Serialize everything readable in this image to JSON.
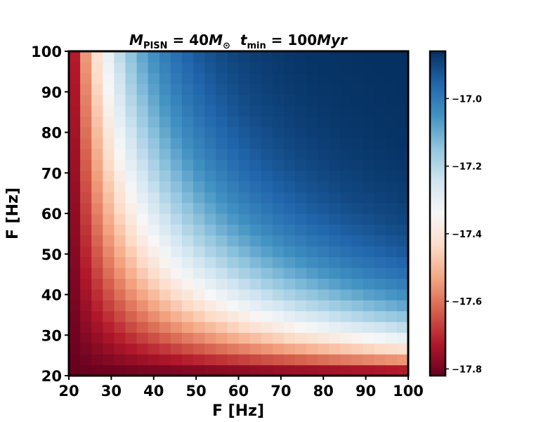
{
  "chart_data": {
    "type": "heatmap",
    "title": "$M_{\\rm PISN}=40M_\\odot$  $t_{\\rm min}=100Myr$",
    "title_parts": {
      "m": "M",
      "m_sub": "PISN",
      "eq1": " = 40",
      "m2": "M",
      "sun": "⊙",
      "t": "t",
      "t_sub": "min",
      "eq2": " = 100",
      "unit": "Myr"
    },
    "xlabel": "F [Hz]",
    "ylabel": "F [Hz]",
    "xlim": [
      20,
      100
    ],
    "ylim": [
      20,
      100
    ],
    "x_ticks": [
      "20",
      "30",
      "40",
      "50",
      "60",
      "70",
      "80",
      "90",
      "100"
    ],
    "y_ticks": [
      "20",
      "30",
      "40",
      "50",
      "60",
      "70",
      "80",
      "90",
      "100"
    ],
    "x_tick_values": [
      20,
      30,
      40,
      50,
      60,
      70,
      80,
      90,
      100
    ],
    "y_tick_values": [
      20,
      30,
      40,
      50,
      60,
      70,
      80,
      90,
      100
    ],
    "grid_n": 30,
    "colormap": "RdBu",
    "zlim": [
      -17.82,
      -16.86
    ],
    "z_formula": "-17.82 + 0.96*(1-exp(-((x-20)/80*(y-20)/80)/0.15))/(1-exp(-1/0.15))",
    "colorbar": {
      "ticks": [
        "−17.8",
        "−17.6",
        "−17.4",
        "−17.2",
        "−17.0"
      ],
      "tick_values": [
        -17.8,
        -17.6,
        -17.4,
        -17.2,
        -17.0
      ]
    },
    "grid": false
  }
}
